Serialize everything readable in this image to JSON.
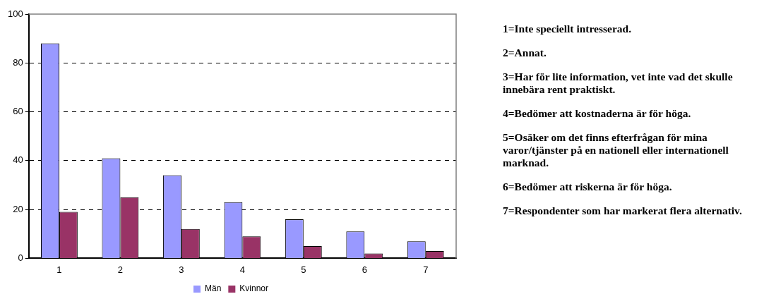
{
  "chart_data": {
    "type": "bar",
    "categories": [
      "1",
      "2",
      "3",
      "4",
      "5",
      "6",
      "7"
    ],
    "series": [
      {
        "name": "Män",
        "color": "#9999ff",
        "values": [
          88,
          41,
          34,
          23,
          16,
          11,
          7
        ]
      },
      {
        "name": "Kvinnor",
        "color": "#993366",
        "values": [
          19,
          25,
          12,
          9,
          5,
          2,
          3
        ]
      }
    ],
    "ylim": [
      0,
      100
    ],
    "yticks": [
      0,
      20,
      40,
      60,
      80,
      100
    ],
    "grid": "y",
    "legend": "bottom",
    "annotations": [
      "1=Inte speciellt intresserad.",
      "2=Annat.",
      "3=Har för lite information, vet inte vad det skulle innebära rent praktiskt.",
      "4=Bedömer att kostnaderna är för höga.",
      "5=Osäker om det finns efterfrågan för mina varor/tjänster på en nationell eller internationell marknad.",
      "6=Bedömer att riskerna är för höga.",
      "7=Respondenter som har markerat flera alternativ."
    ]
  }
}
